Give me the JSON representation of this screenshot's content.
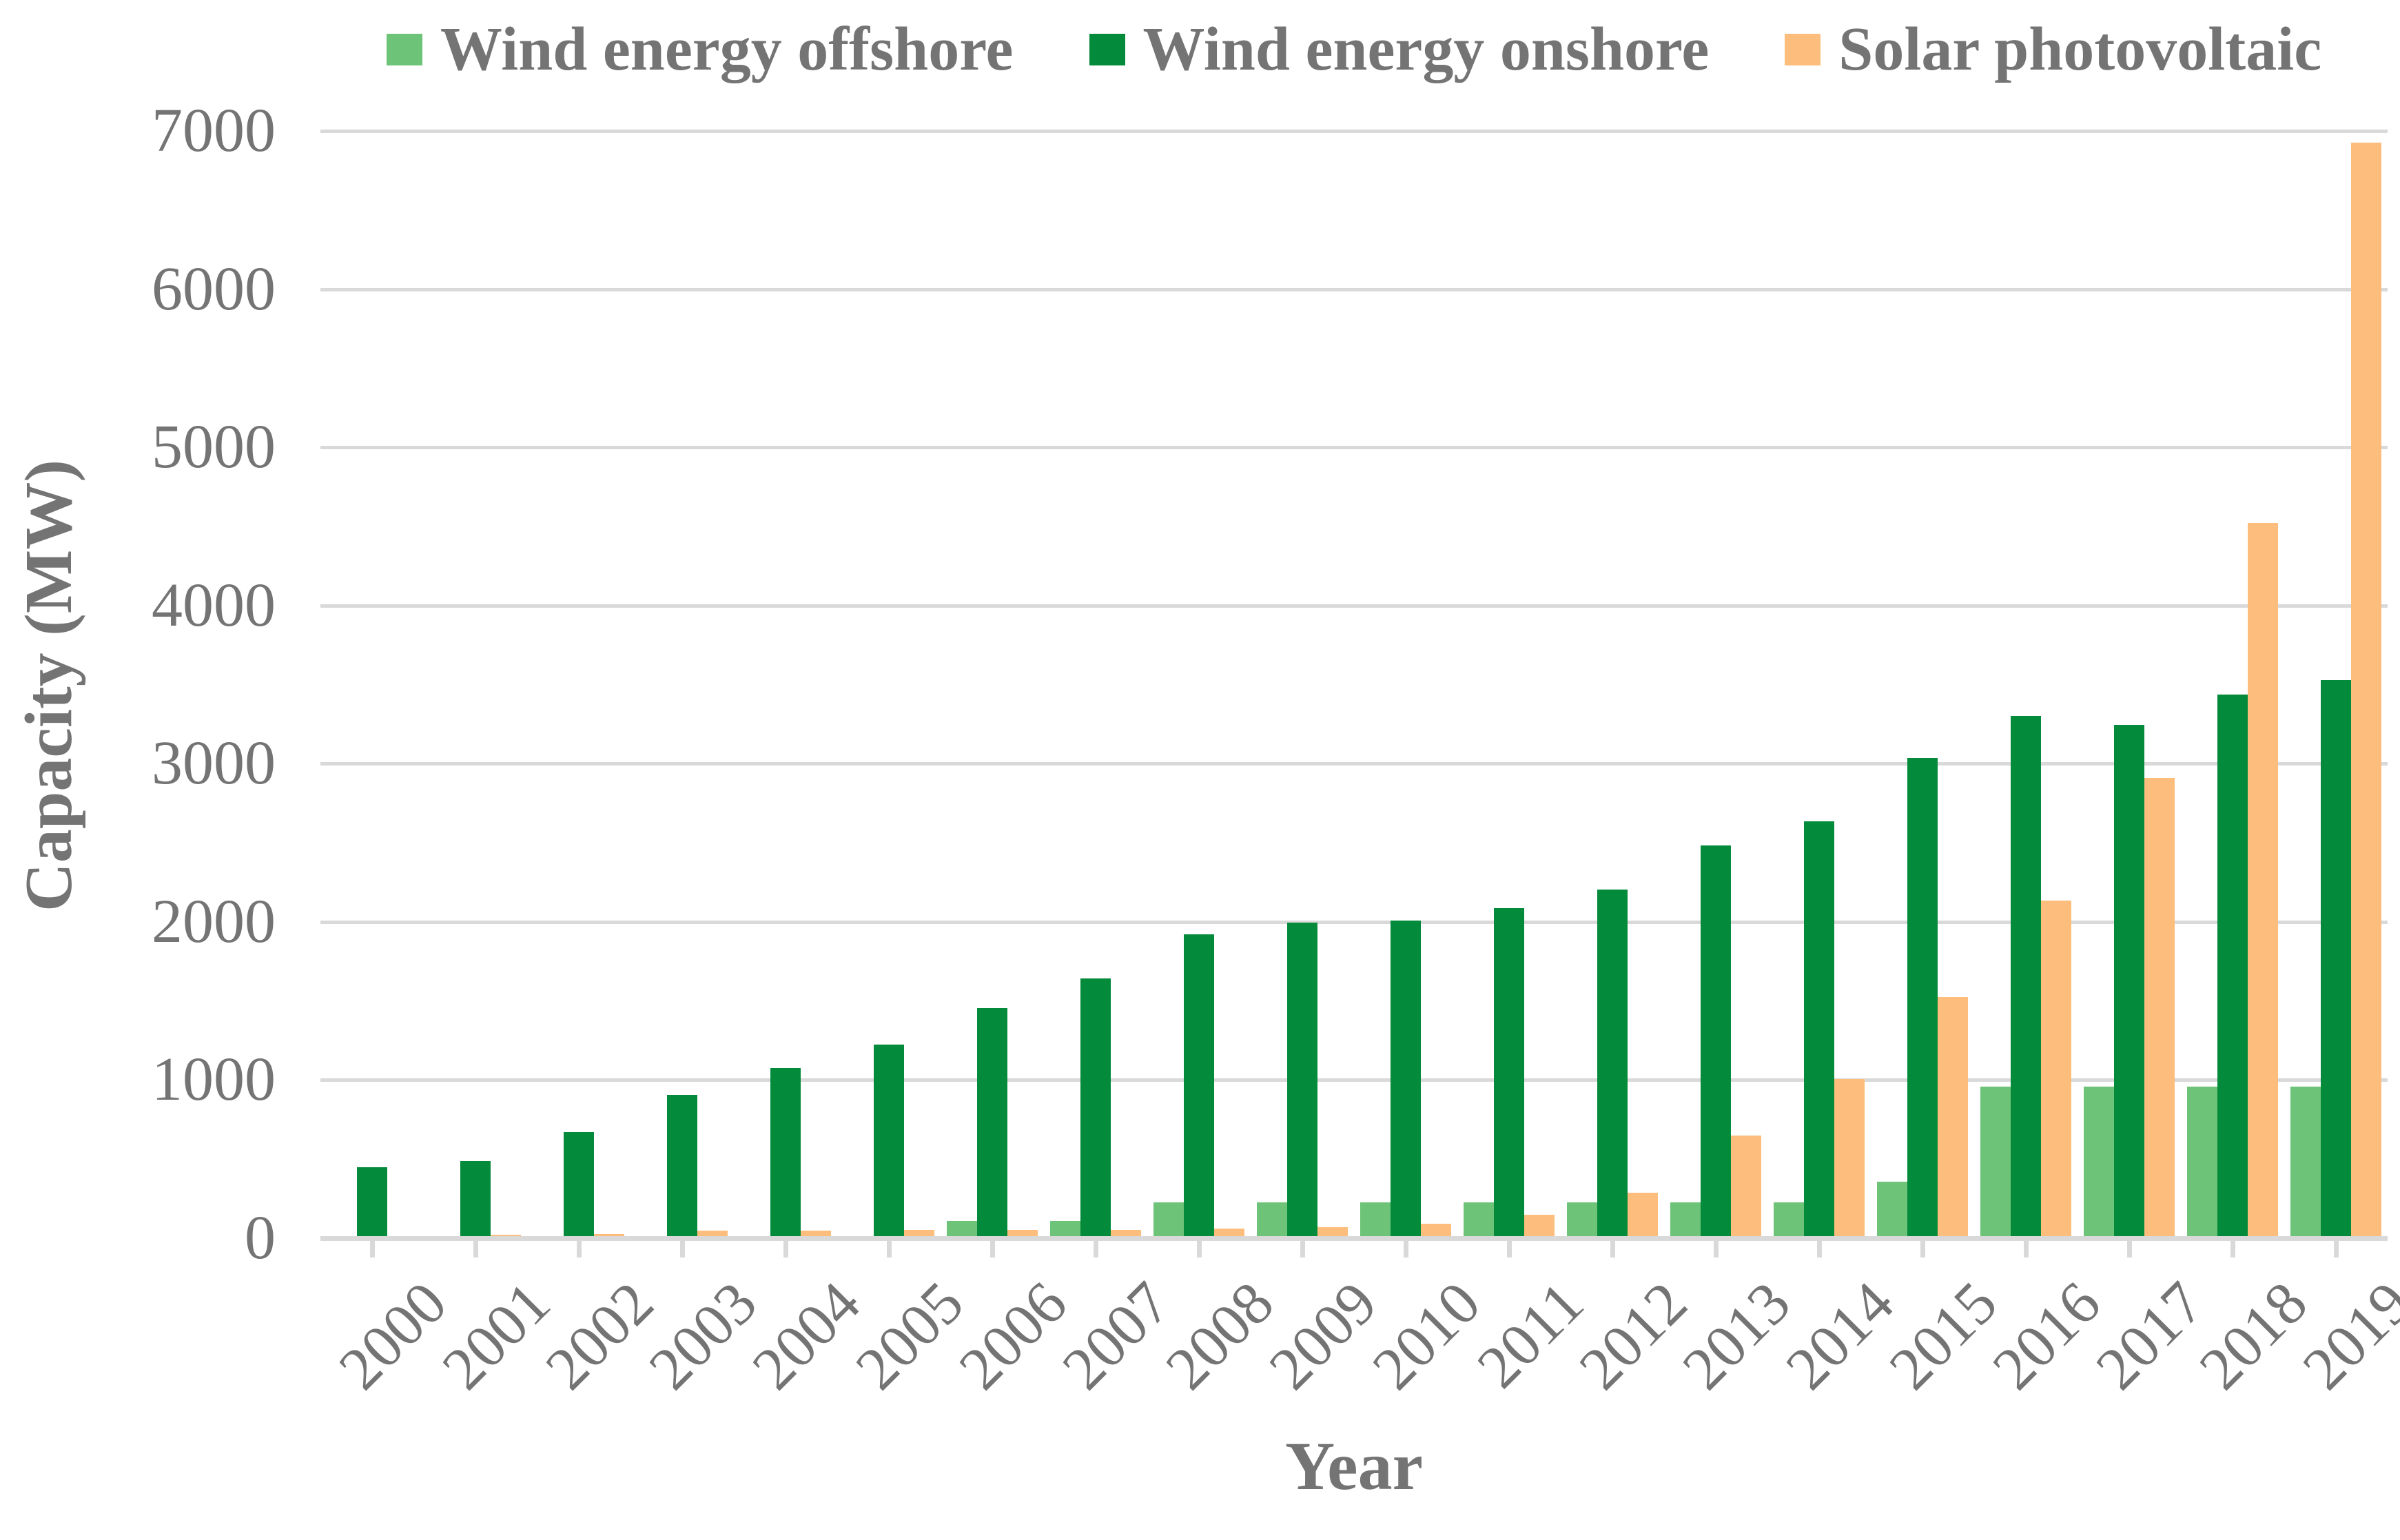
{
  "chart_data": {
    "type": "bar",
    "xlabel": "Year",
    "ylabel": "Capacity (MW)",
    "categories": [
      "2000",
      "2001",
      "2002",
      "2003",
      "2004",
      "2005",
      "2006",
      "2007",
      "2008",
      "2009",
      "2010",
      "2011",
      "2012",
      "2013",
      "2014",
      "2015",
      "2016",
      "2017",
      "2018",
      "2019"
    ],
    "series": [
      {
        "name": "Wind energy offshore",
        "color": "#6DC377",
        "values": [
          0,
          0,
          0,
          0,
          0,
          0,
          108,
          108,
          228,
          228,
          228,
          228,
          228,
          228,
          228,
          357,
          957,
          957,
          957,
          957
        ]
      },
      {
        "name": "Wind energy onshore",
        "color": "#038B3B",
        "values": [
          447,
          486,
          672,
          905,
          1075,
          1224,
          1453,
          1641,
          1921,
          1994,
          2009,
          2088,
          2205,
          2485,
          2637,
          3034,
          3300,
          3245,
          3436,
          3527
        ]
      },
      {
        "name": "Solar photovoltaic",
        "color": "#FDBE7D",
        "values": [
          13,
          21,
          26,
          46,
          50,
          51,
          53,
          54,
          59,
          69,
          90,
          149,
          287,
          650,
          1007,
          1526,
          2135,
          2911,
          4522,
          6924
        ]
      }
    ],
    "ylim": [
      0,
      7000
    ],
    "yticks": [
      0,
      1000,
      2000,
      3000,
      4000,
      5000,
      6000,
      7000
    ],
    "grid": "horizontal",
    "legend_position": "top"
  },
  "styles": {
    "grid_color": "#D9D9D9",
    "axis_color": "#D9D9D9",
    "text_color": "#747474",
    "background": "#FFFFFF"
  }
}
